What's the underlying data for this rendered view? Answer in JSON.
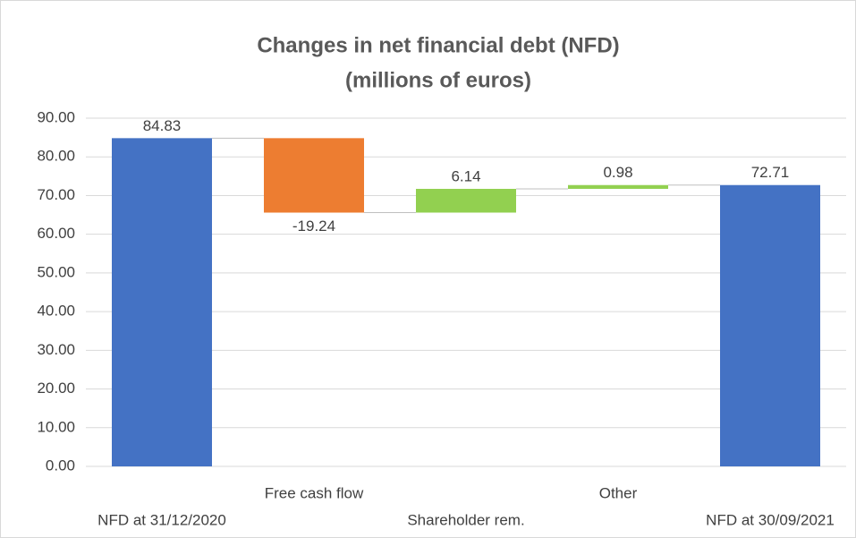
{
  "chart_data": {
    "type": "waterfall",
    "title": "Changes in net financial debt (NFD)",
    "subtitle": "(millions of euros)",
    "categories": [
      "NFD at 31/12/2020",
      "Free cash flow",
      "Shareholder rem.",
      "Other",
      "NFD at 30/09/2021"
    ],
    "values": [
      84.83,
      -19.24,
      6.14,
      0.98,
      72.71
    ],
    "measure": [
      "absolute",
      "relative",
      "relative",
      "relative",
      "absolute"
    ],
    "colors": {
      "total": "#4472c4",
      "increase": "#92d050",
      "decrease": "#ed7d31"
    },
    "ylim": [
      0,
      90
    ],
    "yticks": [
      {
        "value": 0,
        "label": "0.00"
      },
      {
        "value": 10,
        "label": "10.00"
      },
      {
        "value": 20,
        "label": "20.00"
      },
      {
        "value": 30,
        "label": "30.00"
      },
      {
        "value": 40,
        "label": "40.00"
      },
      {
        "value": 50,
        "label": "50.00"
      },
      {
        "value": 60,
        "label": "60.00"
      },
      {
        "value": 70,
        "label": "70.00"
      },
      {
        "value": 80,
        "label": "80.00"
      },
      {
        "value": 90,
        "label": "90.00"
      }
    ],
    "grid": true
  }
}
